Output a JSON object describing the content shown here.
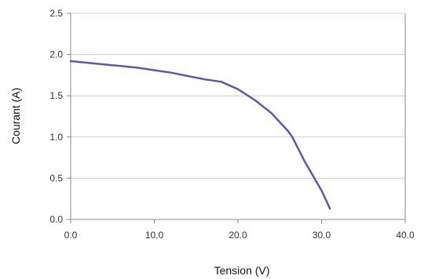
{
  "chart_data": {
    "type": "line",
    "title": "",
    "xlabel": "Tension (V)",
    "ylabel": "Courant (A)",
    "xlim": [
      0,
      40
    ],
    "ylim": [
      0,
      2.5
    ],
    "x_ticks": [
      {
        "value": 0,
        "label": "0.0"
      },
      {
        "value": 10,
        "label": "10.0"
      },
      {
        "value": 20,
        "label": "20.0"
      },
      {
        "value": 30,
        "label": "30.0"
      },
      {
        "value": 40,
        "label": "40.0"
      }
    ],
    "y_ticks": [
      {
        "value": 0,
        "label": "0.0"
      },
      {
        "value": 0.5,
        "label": "0.5"
      },
      {
        "value": 1,
        "label": "1.0"
      },
      {
        "value": 1.5,
        "label": "1.5"
      },
      {
        "value": 2,
        "label": "2.0"
      },
      {
        "value": 2.5,
        "label": "2.5"
      }
    ],
    "grid": "horizontal",
    "legend": "none",
    "series": [
      {
        "color": "#5b5aa8",
        "x": [
          0,
          2,
          4,
          6,
          8,
          10,
          12,
          14,
          16,
          18,
          20,
          22,
          24,
          26,
          26.5,
          28,
          30,
          31
        ],
        "y": [
          1.92,
          1.9,
          1.88,
          1.86,
          1.84,
          1.81,
          1.78,
          1.74,
          1.7,
          1.67,
          1.58,
          1.45,
          1.29,
          1.07,
          1.0,
          0.7,
          0.35,
          0.13
        ]
      }
    ]
  }
}
